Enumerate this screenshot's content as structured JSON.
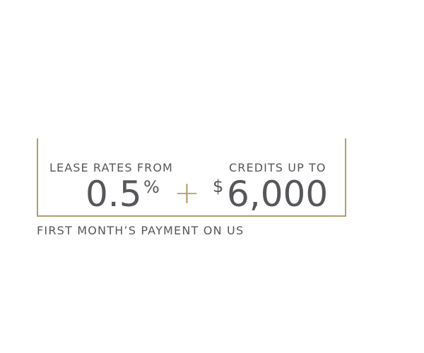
{
  "offer": {
    "rate_label": "LEASE RATES FROM",
    "rate_value": "0.5",
    "rate_unit": "%",
    "combine_symbol": "+",
    "credit_label": "CREDITS UP TO",
    "credit_currency": "$",
    "credit_value": "6,000",
    "tagline": "FIRST MONTH’S PAYMENT ON US"
  },
  "colors": {
    "text": "#55575a",
    "accent_gold": "#b29f6a",
    "background": "#ffffff"
  }
}
